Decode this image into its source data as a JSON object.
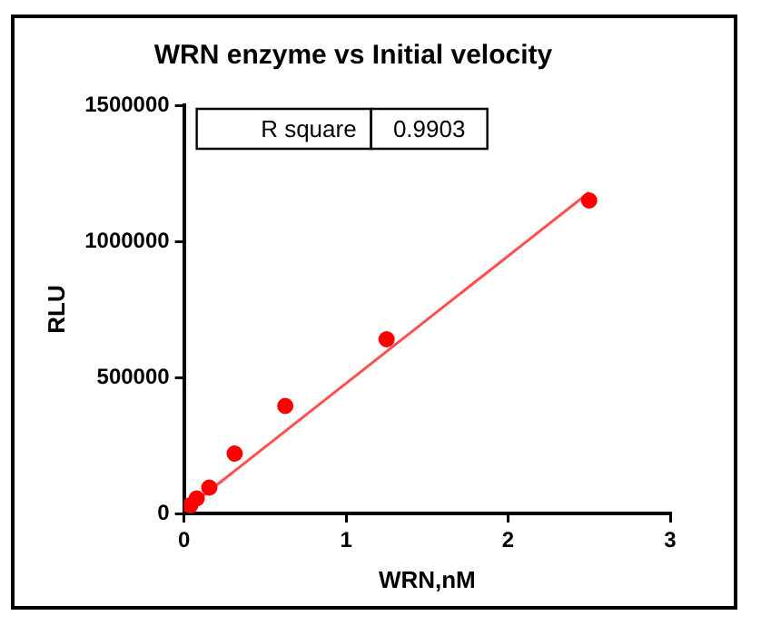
{
  "chart_data": {
    "type": "scatter",
    "title": "WRN enzyme vs Initial velocity",
    "xlabel": "WRN,nM",
    "ylabel": "RLU",
    "annotations": [
      "R square",
      "0.9903"
    ],
    "xlim": [
      0,
      3
    ],
    "xticks": [
      0,
      1,
      2,
      3
    ],
    "ylim": [
      0,
      1500000
    ],
    "yticks": [
      0,
      500000,
      1000000,
      1500000
    ],
    "grid": false,
    "legend": false,
    "series": [
      {
        "color": "#ff0000",
        "marker": "circle",
        "x": [
          0.039,
          0.078,
          0.156,
          0.3125,
          0.625,
          1.25,
          2.5
        ],
        "values": [
          30000,
          55000,
          95000,
          220000,
          395000,
          640000,
          1150000
        ]
      },
      {
        "type": "line",
        "color": "#ff5050",
        "marker": "none",
        "x": [
          0,
          2.5
        ],
        "values": [
          10000,
          1180000
        ]
      }
    ]
  }
}
